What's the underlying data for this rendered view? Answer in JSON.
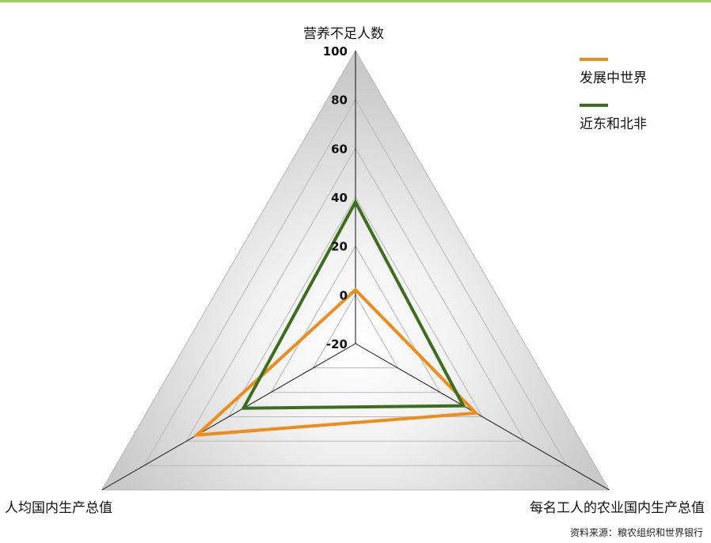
{
  "colors": {
    "top_bar": "#9ccd5e",
    "orange": "#f08c1a",
    "green": "#3c6e1e"
  },
  "chart_data": {
    "type": "radar",
    "axes": [
      "营养不足人数",
      "每名工人的农业国内生产总值",
      "人均国内生产总值"
    ],
    "range": [
      -20,
      100
    ],
    "ticks": [
      100,
      80,
      60,
      40,
      20,
      0,
      -20
    ],
    "series": [
      {
        "name": "发展中世界",
        "color": "#f08c1a",
        "values": [
          2,
          37,
          55
        ]
      },
      {
        "name": "近东和北非",
        "color": "#3c6e1e",
        "values": [
          38,
          31,
          33
        ]
      }
    ],
    "legend_position": "top-right",
    "source": "资料来源：粮农组织和世界银行"
  }
}
